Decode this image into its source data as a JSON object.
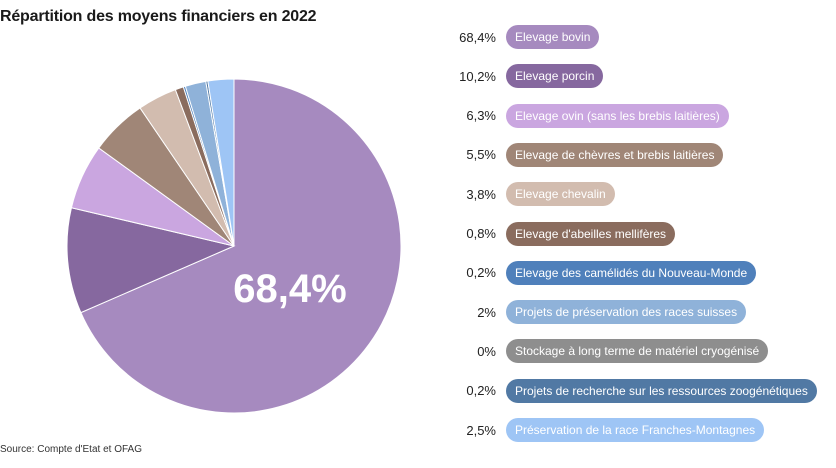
{
  "title": "Répartition des moyens financiers en 2022",
  "source": "Source: Compte d'Etat et OFAG",
  "center_label": "68,4%",
  "chart_data": {
    "type": "pie",
    "title": "Répartition des moyens financiers en 2022",
    "slices": [
      {
        "label": "Elevage bovin",
        "value": 68.4,
        "value_label": "68,4%",
        "color": "#a68abf"
      },
      {
        "label": "Elevage porcin",
        "value": 10.2,
        "value_label": "10,2%",
        "color": "#86689f"
      },
      {
        "label": "Elevage ovin (sans les brebis laitières)",
        "value": 6.3,
        "value_label": "6,3%",
        "color": "#caa6e0"
      },
      {
        "label": "Elevage de chèvres et brebis laitières",
        "value": 5.5,
        "value_label": "5,5%",
        "color": "#a08677"
      },
      {
        "label": "Elevage chevalin",
        "value": 3.8,
        "value_label": "3,8%",
        "color": "#d2bcaf"
      },
      {
        "label": "Elevage d'abeilles mellifères",
        "value": 0.8,
        "value_label": "0,8%",
        "color": "#8a6c5e"
      },
      {
        "label": "Elevage des camélidés du Nouveau-Monde",
        "value": 0.2,
        "value_label": "0,2%",
        "color": "#4f80bb"
      },
      {
        "label": "Projets de préservation des races suisses",
        "value": 2,
        "value_label": "2%",
        "color": "#8fb2d9"
      },
      {
        "label": "Stockage à long terme de matériel cryogénisé",
        "value": 0,
        "value_label": "0%",
        "color": "#8e8e8e"
      },
      {
        "label": "Projets de recherche sur les ressources zoogénétiques",
        "value": 0.2,
        "value_label": "0,2%",
        "color": "#5179a4"
      },
      {
        "label": "Préservation de la race Franches-Montagnes",
        "value": 2.5,
        "value_label": "2,5%",
        "color": "#9ec5f5"
      }
    ]
  }
}
